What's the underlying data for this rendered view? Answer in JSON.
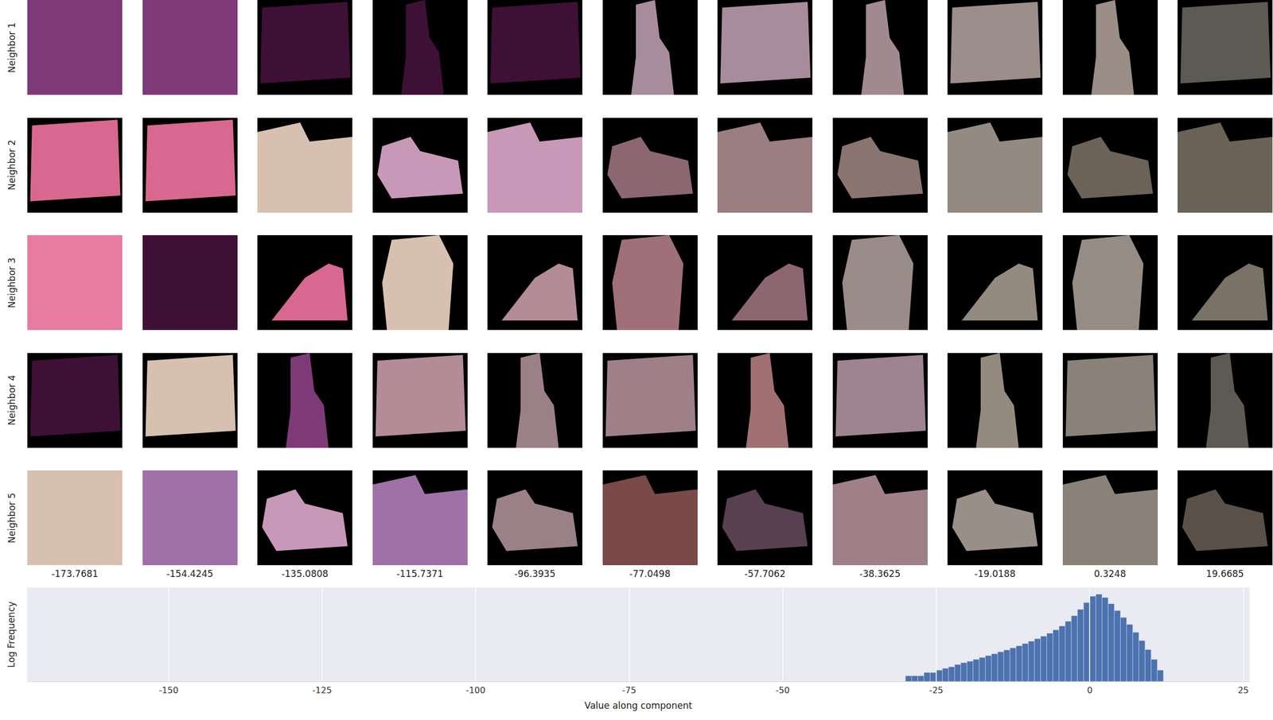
{
  "patch_grid": {
    "row_labels": [
      "Neighbor 1",
      "Neighbor 2",
      "Neighbor 3",
      "Neighbor 4",
      "Neighbor 5"
    ],
    "column_values": [
      -173.7681,
      -154.4245,
      -135.0808,
      -115.7371,
      -96.3935,
      -77.0498,
      -57.7062,
      -38.3625,
      -19.0188,
      0.3248,
      19.6685
    ],
    "colors": [
      [
        "#7e3a78",
        "#7e3a78",
        "#3e1036",
        "#3e1036",
        "#3e1036",
        "#a88c9c",
        "#a88c9c",
        "#a08a90",
        "#9c8e8a",
        "#9a8e86",
        "#5c5a52"
      ],
      [
        "#d86890",
        "#d86890",
        "#d8c0b0",
        "#c898b8",
        "#c898b8",
        "#8c6670",
        "#9a7e80",
        "#8a7470",
        "#958a82",
        "#6c6258",
        "#6a6256"
      ],
      [
        "#e87ca0",
        "#3e1036",
        "#d86890",
        "#d8c0b0",
        "#b48c98",
        "#a07078",
        "#8c6670",
        "#9a8c88",
        "#948a80",
        "#968c84",
        "#7a7266"
      ],
      [
        "#3e1036",
        "#d8c0b0",
        "#7e3a78",
        "#b48c98",
        "#9c8088",
        "#a08088",
        "#a07072",
        "#9e8490",
        "#948a80",
        "#8a8278",
        "#5c5a52"
      ],
      [
        "#d8c0b0",
        "#a070a8",
        "#c898b8",
        "#a070a8",
        "#9c8088",
        "#7a4a48",
        "#584050",
        "#a08088",
        "#9a8e88",
        "#8a8278",
        "#5a5048"
      ]
    ]
  },
  "chart_data": {
    "type": "histogram",
    "xlabel": "Value along component",
    "ylabel": "Log Frequency",
    "bins": [
      -30,
      -29,
      -28,
      -27,
      -26,
      -25,
      -24,
      -23,
      -22,
      -21,
      -20,
      -19,
      -18,
      -17,
      -16,
      -15,
      -14,
      -13,
      -12,
      -11,
      -10,
      -9,
      -8,
      -7,
      -6,
      -5,
      -4,
      -3,
      -2,
      -1,
      0,
      1,
      2,
      3,
      4,
      5,
      6,
      7,
      8,
      9,
      10,
      11,
      12
    ],
    "counts": [
      2,
      2,
      2,
      3,
      3,
      4,
      5,
      6,
      8,
      10,
      12,
      15,
      19,
      24,
      30,
      38,
      48,
      62,
      80,
      105,
      140,
      190,
      260,
      370,
      560,
      900,
      1600,
      3200,
      7000,
      16000,
      35000,
      45000,
      30000,
      14000,
      6000,
      2600,
      1100,
      420,
      150,
      50,
      15,
      4
    ],
    "color": "#4c72b0",
    "xlim": [
      -173,
      26
    ],
    "xticks": [
      -150,
      -125,
      -100,
      -75,
      -50,
      -25,
      0,
      25
    ],
    "ylim": [
      1,
      100000
    ],
    "log": "y",
    "grid": true,
    "tick_labels": "x"
  }
}
